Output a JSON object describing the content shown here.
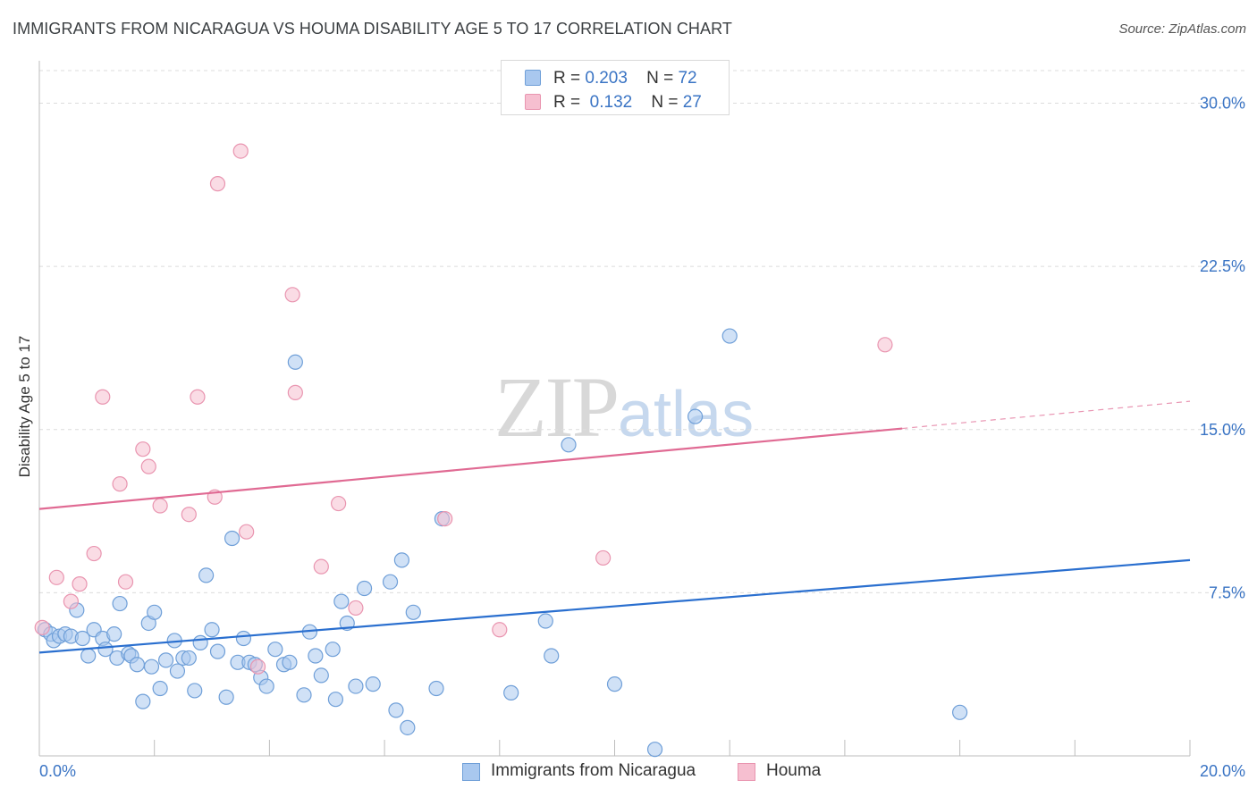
{
  "header": {
    "title": "IMMIGRANTS FROM NICARAGUA VS HOUMA DISABILITY AGE 5 TO 17 CORRELATION CHART",
    "source": "Source: ZipAtlas.com"
  },
  "watermark": {
    "zip": "ZIP",
    "atlas": "atlas"
  },
  "legend": {
    "rows": [
      {
        "r_label": "R =",
        "r_value": "0.203",
        "n_label": "N =",
        "n_value": "72"
      },
      {
        "r_label": "R =",
        "r_value": "0.132",
        "n_label": "N =",
        "n_value": "27"
      }
    ]
  },
  "bottom_legend": {
    "series1": "Immigrants from Nicaragua",
    "series2": "Houma"
  },
  "colors": {
    "blue_fill": "#a9c8ef",
    "blue_stroke": "#6f9fd8",
    "blue_line": "#2a6fcf",
    "pink_fill": "#f6bfd0",
    "pink_stroke": "#e995b0",
    "pink_line": "#e06a93",
    "axis_text": "#3a74c4",
    "grid": "#dcdcdc"
  },
  "chart_data": {
    "type": "scatter",
    "title": "IMMIGRANTS FROM NICARAGUA VS HOUMA DISABILITY AGE 5 TO 17 CORRELATION CHART",
    "xlabel": "",
    "ylabel": "Disability Age 5 to 17",
    "xlim": [
      0,
      20
    ],
    "ylim": [
      0,
      30
    ],
    "x_tick_labels": [
      "0.0%",
      "20.0%"
    ],
    "y_ticks": [
      7.5,
      15.0,
      22.5,
      30.0
    ],
    "y_tick_labels": [
      "7.5%",
      "15.0%",
      "22.5%",
      "30.0%"
    ],
    "grid": true,
    "legend_position": "top-center",
    "series": [
      {
        "name": "Immigrants from Nicaragua",
        "r": 0.203,
        "n": 72,
        "trend": {
          "x": [
            0,
            20
          ],
          "y": [
            4.75,
            9.0
          ]
        },
        "points": [
          [
            0.1,
            5.8
          ],
          [
            0.2,
            5.6
          ],
          [
            0.25,
            5.3
          ],
          [
            0.35,
            5.5
          ],
          [
            0.45,
            5.6
          ],
          [
            0.55,
            5.5
          ],
          [
            0.65,
            6.7
          ],
          [
            0.75,
            5.4
          ],
          [
            0.85,
            4.6
          ],
          [
            0.95,
            5.8
          ],
          [
            1.1,
            5.4
          ],
          [
            1.15,
            4.9
          ],
          [
            1.3,
            5.6
          ],
          [
            1.35,
            4.5
          ],
          [
            1.4,
            7.0
          ],
          [
            1.55,
            4.7
          ],
          [
            1.6,
            4.6
          ],
          [
            1.7,
            4.2
          ],
          [
            1.8,
            2.5
          ],
          [
            1.9,
            6.1
          ],
          [
            1.95,
            4.1
          ],
          [
            2.0,
            6.6
          ],
          [
            2.1,
            3.1
          ],
          [
            2.2,
            4.4
          ],
          [
            2.35,
            5.3
          ],
          [
            2.4,
            3.9
          ],
          [
            2.5,
            4.5
          ],
          [
            2.6,
            4.5
          ],
          [
            2.7,
            3.0
          ],
          [
            2.8,
            5.2
          ],
          [
            2.9,
            8.3
          ],
          [
            3.0,
            5.8
          ],
          [
            3.1,
            4.8
          ],
          [
            3.25,
            2.7
          ],
          [
            3.35,
            10.0
          ],
          [
            3.45,
            4.3
          ],
          [
            3.55,
            5.4
          ],
          [
            3.65,
            4.3
          ],
          [
            3.75,
            4.2
          ],
          [
            3.85,
            3.6
          ],
          [
            3.95,
            3.2
          ],
          [
            4.1,
            4.9
          ],
          [
            4.25,
            4.2
          ],
          [
            4.35,
            4.3
          ],
          [
            4.45,
            18.1
          ],
          [
            4.6,
            2.8
          ],
          [
            4.7,
            5.7
          ],
          [
            4.8,
            4.6
          ],
          [
            4.9,
            3.7
          ],
          [
            5.1,
            4.9
          ],
          [
            5.15,
            2.6
          ],
          [
            5.25,
            7.1
          ],
          [
            5.35,
            6.1
          ],
          [
            5.5,
            3.2
          ],
          [
            5.65,
            7.7
          ],
          [
            5.8,
            3.3
          ],
          [
            6.1,
            8.0
          ],
          [
            6.2,
            2.1
          ],
          [
            6.3,
            9.0
          ],
          [
            6.4,
            1.3
          ],
          [
            6.5,
            6.6
          ],
          [
            6.9,
            3.1
          ],
          [
            7.0,
            10.9
          ],
          [
            8.2,
            2.9
          ],
          [
            8.8,
            6.2
          ],
          [
            8.9,
            4.6
          ],
          [
            9.2,
            14.3
          ],
          [
            10.0,
            3.3
          ],
          [
            10.7,
            0.3
          ],
          [
            11.4,
            15.6
          ],
          [
            12.0,
            19.3
          ],
          [
            16.0,
            2.0
          ]
        ]
      },
      {
        "name": "Houma",
        "r": 0.132,
        "n": 27,
        "trend": {
          "x": [
            0,
            15
          ],
          "y": [
            11.35,
            15.05
          ]
        },
        "trend_dashed": {
          "x": [
            15,
            20
          ],
          "y": [
            15.05,
            16.3
          ]
        },
        "points": [
          [
            0.05,
            5.9
          ],
          [
            0.3,
            8.2
          ],
          [
            0.55,
            7.1
          ],
          [
            0.7,
            7.9
          ],
          [
            0.95,
            9.3
          ],
          [
            1.1,
            16.5
          ],
          [
            1.4,
            12.5
          ],
          [
            1.5,
            8.0
          ],
          [
            1.8,
            14.1
          ],
          [
            1.9,
            13.3
          ],
          [
            2.1,
            11.5
          ],
          [
            2.6,
            11.1
          ],
          [
            2.75,
            16.5
          ],
          [
            3.05,
            11.9
          ],
          [
            3.1,
            26.3
          ],
          [
            3.5,
            27.8
          ],
          [
            3.6,
            10.3
          ],
          [
            3.8,
            4.1
          ],
          [
            4.45,
            16.7
          ],
          [
            4.4,
            21.2
          ],
          [
            4.9,
            8.7
          ],
          [
            5.2,
            11.6
          ],
          [
            5.5,
            6.8
          ],
          [
            7.05,
            10.9
          ],
          [
            8.0,
            5.8
          ],
          [
            9.8,
            9.1
          ],
          [
            14.7,
            18.9
          ]
        ]
      }
    ]
  }
}
